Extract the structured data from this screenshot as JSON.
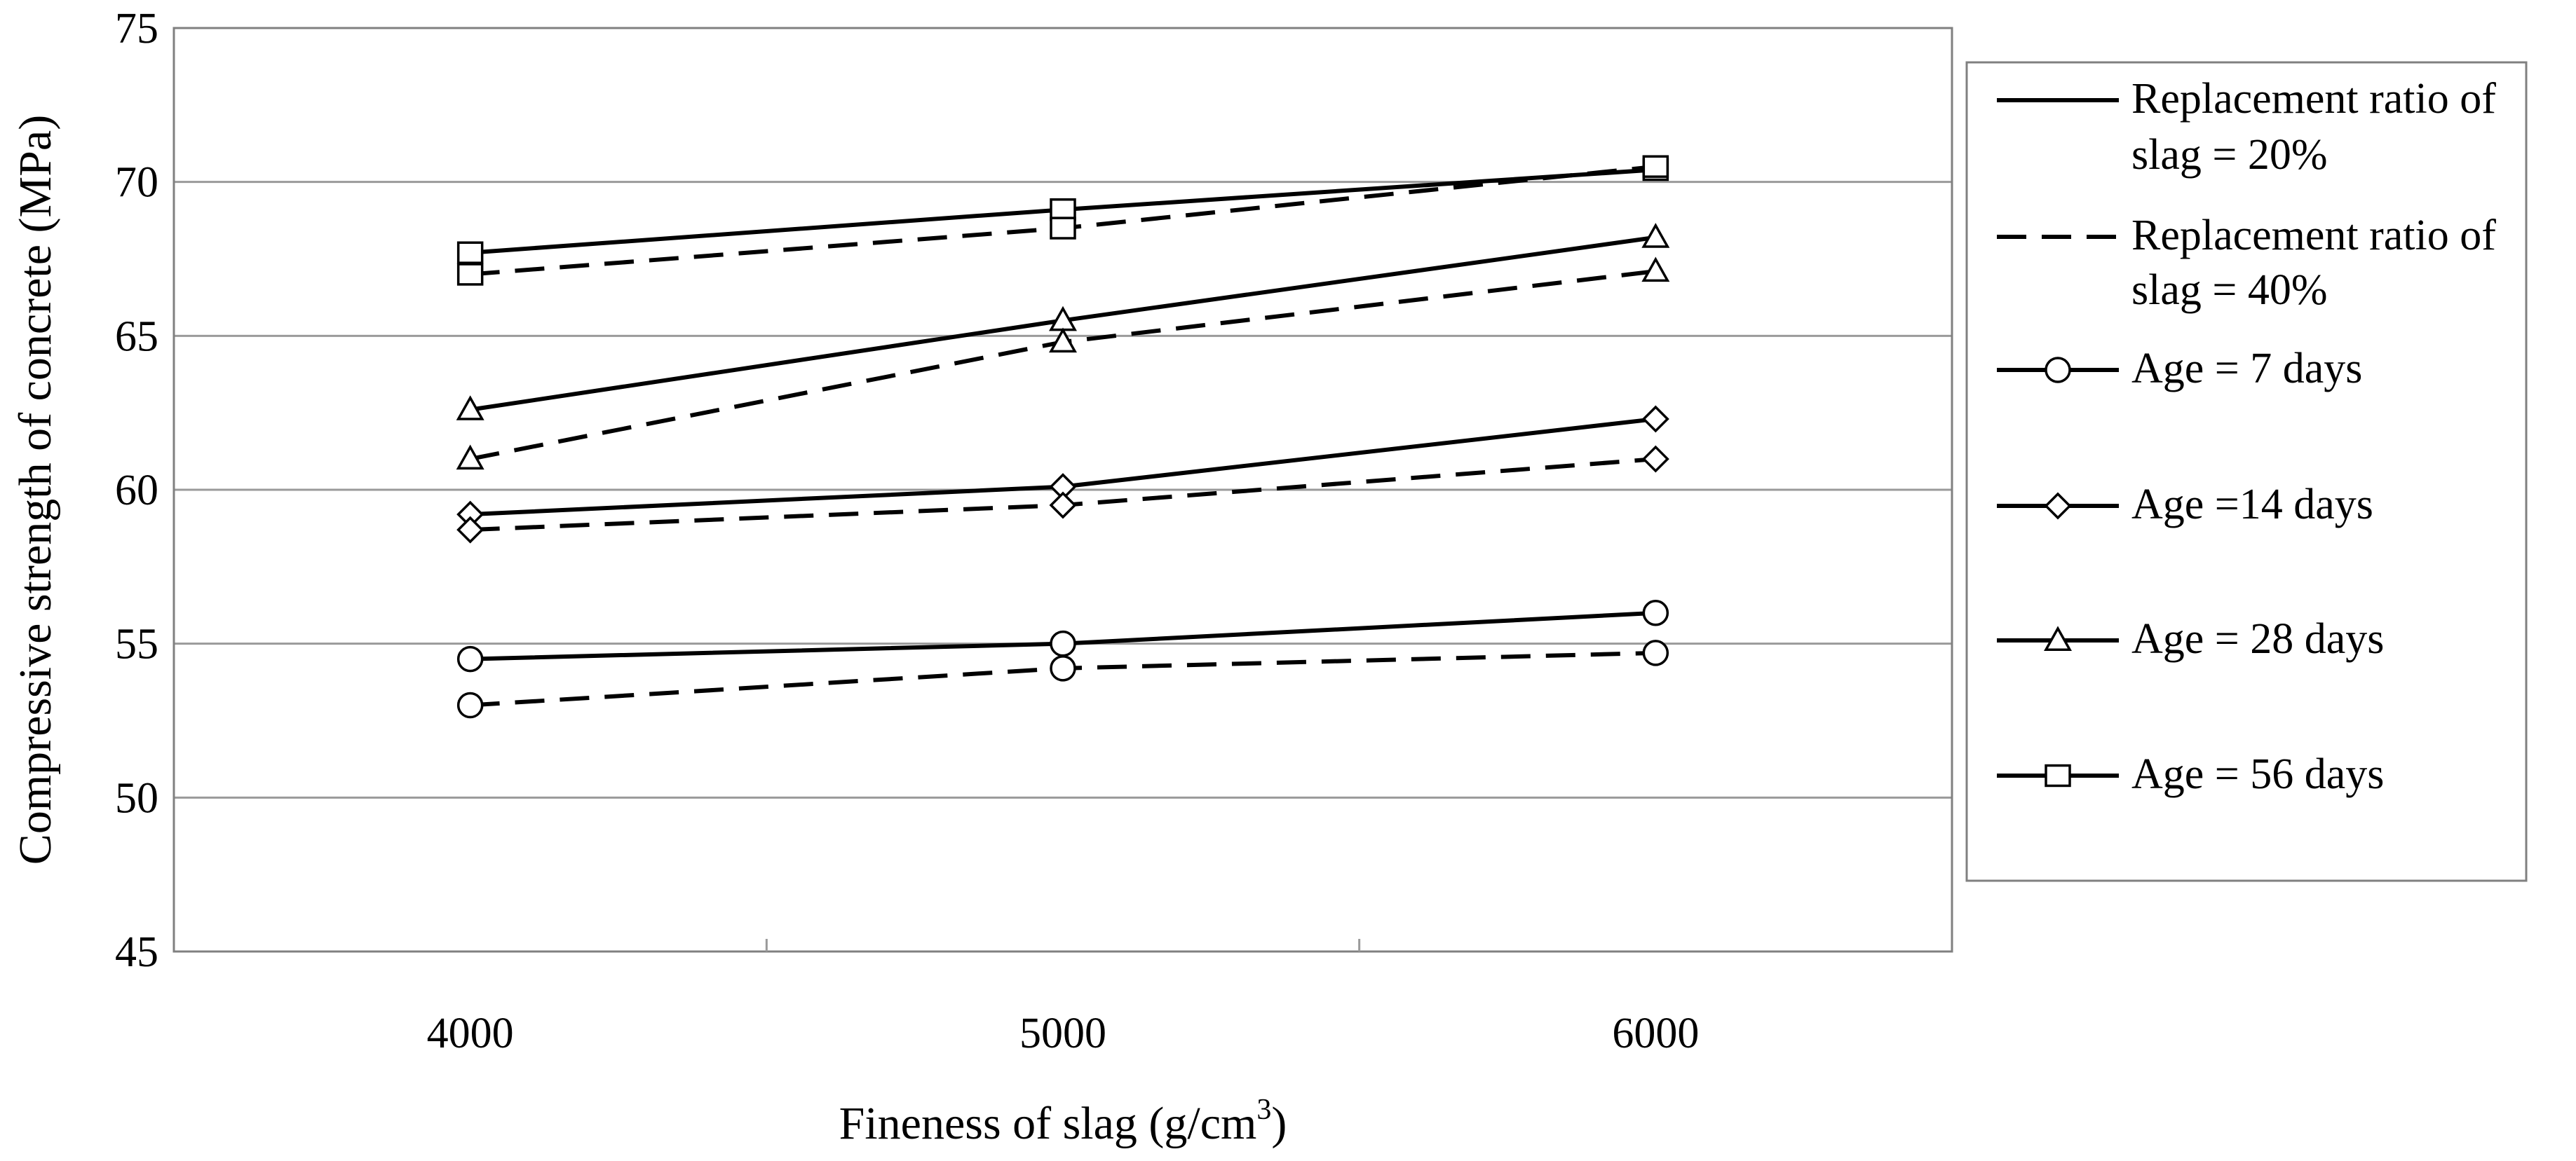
{
  "chart_data": {
    "type": "line",
    "title": "",
    "xlabel_main": "Fineness of slag (g/cm",
    "xlabel_sup": "3",
    "xlabel_close": ")",
    "ylabel": "Compressive strength of concrete (MPa)",
    "categories": [
      "4000",
      "5000",
      "6000"
    ],
    "ylim": [
      45,
      75
    ],
    "ytick_step": 5,
    "grid": "horizontal",
    "legend_position": "right",
    "series": [
      {
        "name": "Age = 7 days, slag = 20%",
        "age": "7",
        "ratio": "20",
        "marker": "circle",
        "dash": false,
        "values": [
          54.5,
          55.0,
          56.0
        ]
      },
      {
        "name": "Age = 7 days, slag = 40%",
        "age": "7",
        "ratio": "40",
        "marker": "circle",
        "dash": true,
        "values": [
          53.0,
          54.2,
          54.7
        ]
      },
      {
        "name": "Age = 14 days, slag = 20%",
        "age": "14",
        "ratio": "20",
        "marker": "diamond",
        "dash": false,
        "values": [
          59.2,
          60.1,
          62.3
        ]
      },
      {
        "name": "Age = 14 days, slag = 40%",
        "age": "14",
        "ratio": "40",
        "marker": "diamond",
        "dash": true,
        "values": [
          58.7,
          59.5,
          61.0
        ]
      },
      {
        "name": "Age = 28 days, slag = 20%",
        "age": "28",
        "ratio": "20",
        "marker": "triangle",
        "dash": false,
        "values": [
          62.6,
          65.5,
          68.2
        ]
      },
      {
        "name": "Age = 28 days, slag = 40%",
        "age": "28",
        "ratio": "40",
        "marker": "triangle",
        "dash": true,
        "values": [
          61.0,
          64.8,
          67.1
        ]
      },
      {
        "name": "Age = 56 days, slag = 20%",
        "age": "56",
        "ratio": "20",
        "marker": "square",
        "dash": false,
        "values": [
          67.7,
          69.1,
          70.4
        ]
      },
      {
        "name": "Age = 56 days, slag = 40%",
        "age": "56",
        "ratio": "40",
        "marker": "square",
        "dash": true,
        "values": [
          67.0,
          68.5,
          70.5
        ]
      }
    ],
    "legend": [
      {
        "lines": [
          "Replacement ratio of",
          "slag = 20%"
        ],
        "style": "solid",
        "marker": "none"
      },
      {
        "lines": [
          "Replacement ratio of",
          "slag = 40%"
        ],
        "style": "dashed",
        "marker": "none"
      },
      {
        "lines": [
          "Age = 7 days"
        ],
        "style": "solid",
        "marker": "circle"
      },
      {
        "lines": [
          "Age =14 days"
        ],
        "style": "solid",
        "marker": "diamond"
      },
      {
        "lines": [
          "Age = 28 days"
        ],
        "style": "solid",
        "marker": "triangle"
      },
      {
        "lines": [
          "Age = 56 days"
        ],
        "style": "solid",
        "marker": "square"
      }
    ],
    "colors": {
      "line": "#000000",
      "grid": "#9a9a9a",
      "background": "#ffffff"
    }
  }
}
